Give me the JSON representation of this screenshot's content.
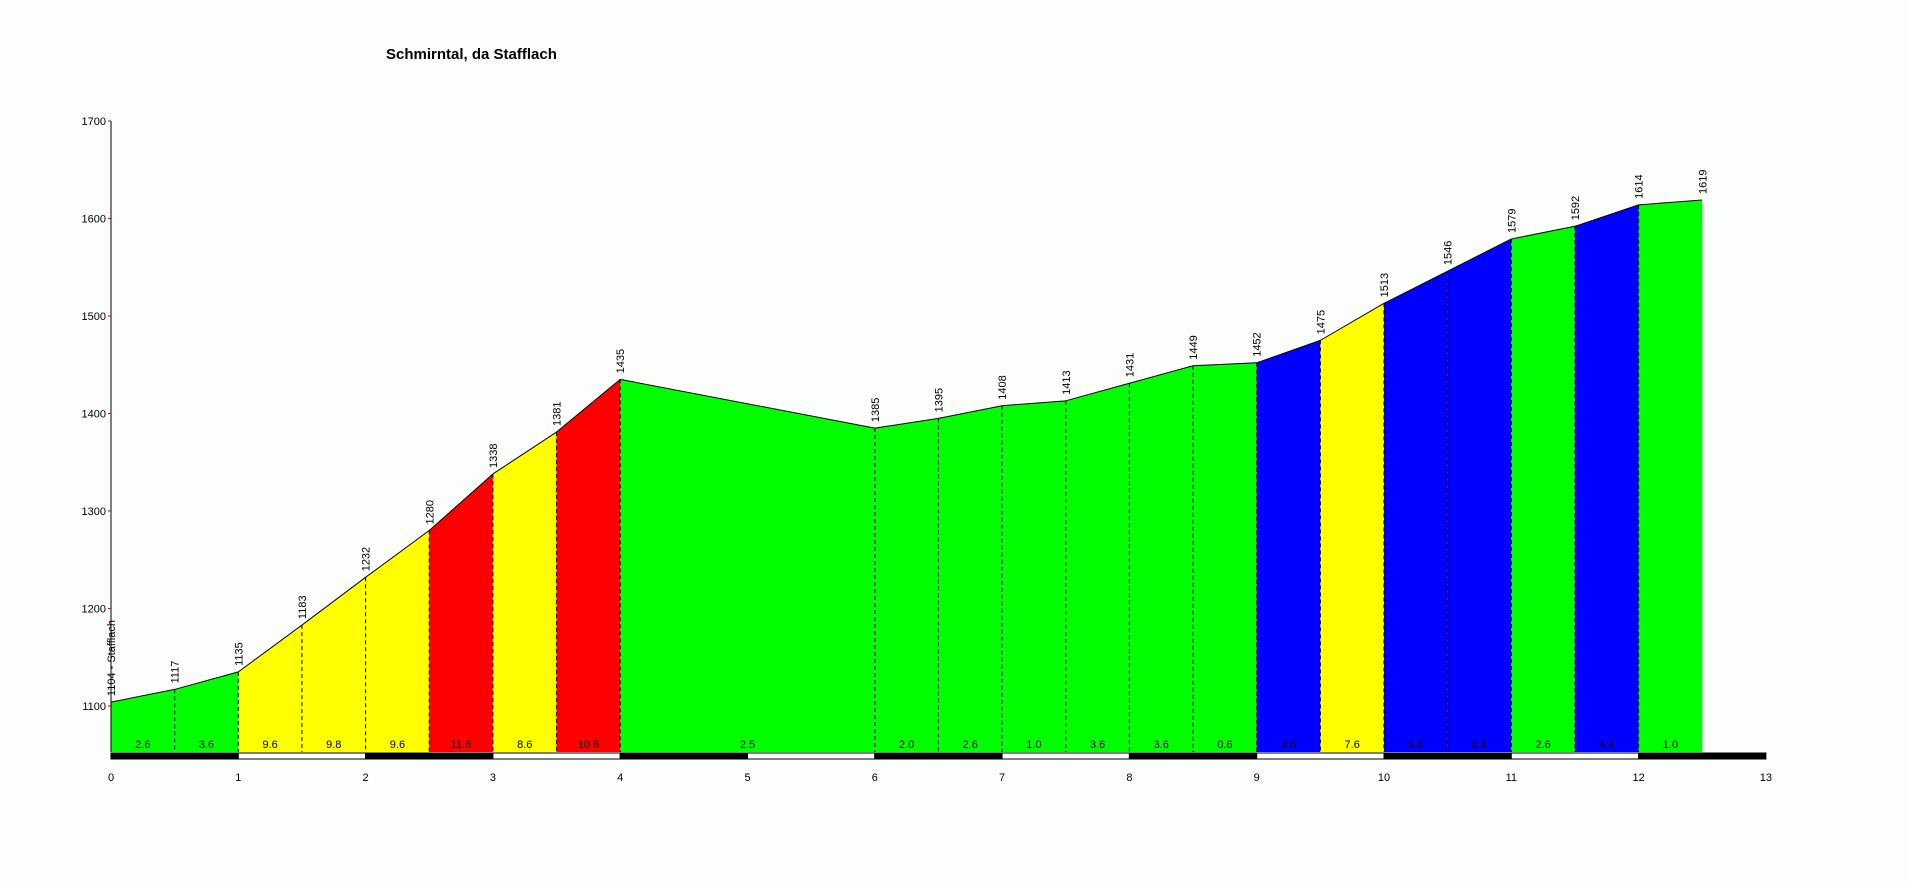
{
  "chart_data": {
    "type": "area",
    "title": "Schmirntal, da Stafflach",
    "xlabel": "",
    "ylabel": "",
    "xlim": [
      0,
      13
    ],
    "ylim": [
      1050,
      1700
    ],
    "x_ticks": [
      "0",
      "1",
      "2",
      "3",
      "4",
      "5",
      "6",
      "7",
      "8",
      "9",
      "10",
      "11",
      "12",
      "13"
    ],
    "y_ticks": [
      "1100",
      "1200",
      "1300",
      "1400",
      "1500",
      "1600",
      "1700"
    ],
    "grid": false,
    "points": [
      {
        "km": 0,
        "alt": 1104,
        "label": "1104 - Stafflach"
      },
      {
        "km": 0.5,
        "alt": 1117,
        "label": "1117"
      },
      {
        "km": 1,
        "alt": 1135,
        "label": "1135"
      },
      {
        "km": 1.5,
        "alt": 1183,
        "label": "1183"
      },
      {
        "km": 2,
        "alt": 1232,
        "label": "1232"
      },
      {
        "km": 2.5,
        "alt": 1280,
        "label": "1280"
      },
      {
        "km": 3,
        "alt": 1338,
        "label": "1338"
      },
      {
        "km": 3.5,
        "alt": 1381,
        "label": "1381"
      },
      {
        "km": 4,
        "alt": 1435,
        "label": "1435"
      },
      {
        "km": 6,
        "alt": 1385,
        "label": "1385"
      },
      {
        "km": 6.5,
        "alt": 1395,
        "label": "1395"
      },
      {
        "km": 7,
        "alt": 1408,
        "label": "1408"
      },
      {
        "km": 7.5,
        "alt": 1413,
        "label": "1413"
      },
      {
        "km": 8,
        "alt": 1431,
        "label": "1431"
      },
      {
        "km": 8.5,
        "alt": 1449,
        "label": "1449"
      },
      {
        "km": 9,
        "alt": 1452,
        "label": "1452"
      },
      {
        "km": 9.5,
        "alt": 1475,
        "label": "1475"
      },
      {
        "km": 10,
        "alt": 1513,
        "label": "1513"
      },
      {
        "km": 10.5,
        "alt": 1546,
        "label": "1546"
      },
      {
        "km": 11,
        "alt": 1579,
        "label": "1579"
      },
      {
        "km": 11.5,
        "alt": 1592,
        "label": "1592"
      },
      {
        "km": 12,
        "alt": 1614,
        "label": "1614"
      },
      {
        "km": 12.5,
        "alt": 1619,
        "label": "1619"
      }
    ],
    "segments": [
      {
        "gradient": "2.6",
        "color": "#00ff00"
      },
      {
        "gradient": "3.6",
        "color": "#00ff00"
      },
      {
        "gradient": "9.6",
        "color": "#ffff00"
      },
      {
        "gradient": "9.8",
        "color": "#ffff00"
      },
      {
        "gradient": "9.6",
        "color": "#ffff00"
      },
      {
        "gradient": "11.6",
        "color": "#ff0000"
      },
      {
        "gradient": "8.6",
        "color": "#ffff00"
      },
      {
        "gradient": "10.8",
        "color": "#ff0000"
      },
      {
        "gradient": "2.5",
        "color": "#00ff00"
      },
      {
        "gradient": "2.0",
        "color": "#00ff00"
      },
      {
        "gradient": "2.6",
        "color": "#00ff00"
      },
      {
        "gradient": "1.0",
        "color": "#00ff00"
      },
      {
        "gradient": "3.6",
        "color": "#00ff00"
      },
      {
        "gradient": "3.6",
        "color": "#00ff00"
      },
      {
        "gradient": "0.6",
        "color": "#00ff00"
      },
      {
        "gradient": "4.6",
        "color": "#0000ff"
      },
      {
        "gradient": "7.6",
        "color": "#ffff00"
      },
      {
        "gradient": "6.6",
        "color": "#0000ff"
      },
      {
        "gradient": "6.6",
        "color": "#0000ff"
      },
      {
        "gradient": "2.6",
        "color": "#00ff00"
      },
      {
        "gradient": "4.4",
        "color": "#0000ff"
      },
      {
        "gradient": "1.0",
        "color": "#00ff00"
      }
    ]
  }
}
